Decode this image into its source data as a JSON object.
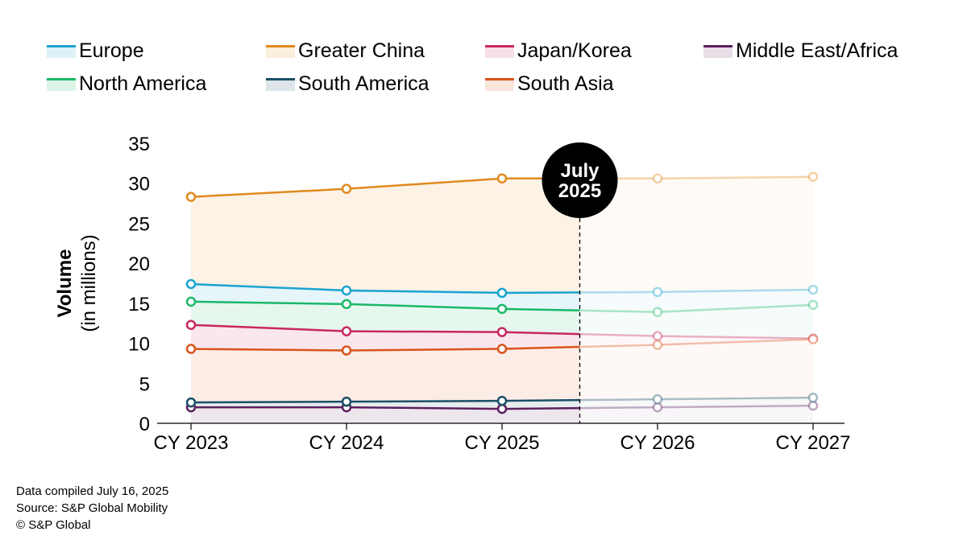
{
  "chart_data": {
    "type": "line",
    "categories": [
      "CY 2023",
      "CY 2024",
      "CY 2025",
      "CY 2026",
      "CY 2027"
    ],
    "ylabel": "Volume",
    "ylabel_sub": "(in millions)",
    "ylim": [
      0,
      35
    ],
    "yticks": [
      0,
      5,
      10,
      15,
      20,
      25,
      30,
      35
    ],
    "forecast_marker": {
      "line1": "July",
      "line2": "2025",
      "position": 2.5
    },
    "series": [
      {
        "name": "Europe",
        "color": "#1aa3d0",
        "values": [
          17.4,
          16.6,
          16.3,
          16.4,
          16.7
        ]
      },
      {
        "name": "Greater China",
        "color": "#e08a1e",
        "values": [
          28.3,
          29.3,
          30.6,
          30.6,
          30.8
        ]
      },
      {
        "name": "Japan/Korea",
        "color": "#c8285e",
        "values": [
          12.3,
          11.5,
          11.4,
          10.9,
          10.6
        ]
      },
      {
        "name": "Middle East/Africa",
        "color": "#5b1f5e",
        "values": [
          2.0,
          2.0,
          1.8,
          2.0,
          2.2
        ]
      },
      {
        "name": "North America",
        "color": "#19b867",
        "values": [
          15.2,
          14.9,
          14.3,
          13.9,
          14.8
        ]
      },
      {
        "name": "South America",
        "color": "#1b4f66",
        "values": [
          2.6,
          2.7,
          2.8,
          3.0,
          3.2
        ]
      },
      {
        "name": "South Asia",
        "color": "#d9541b",
        "values": [
          9.3,
          9.1,
          9.3,
          9.8,
          10.5
        ]
      }
    ]
  },
  "footer": {
    "line1": "Data compiled July 16, 2025",
    "line2": "Source: S&P Global Mobility",
    "line3": "© S&P Global"
  }
}
